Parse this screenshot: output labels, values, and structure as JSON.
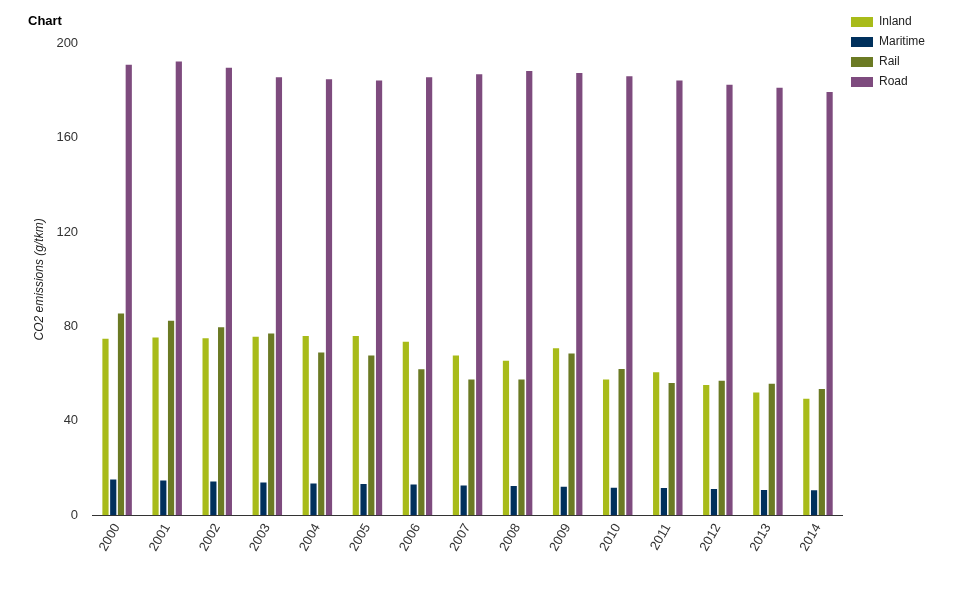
{
  "chart_data": {
    "type": "bar",
    "title": "Chart",
    "y_label": "CO2 emissions (g/tkm)",
    "categories": [
      "2000",
      "2001",
      "2002",
      "2003",
      "2004",
      "2005",
      "2006",
      "2007",
      "2008",
      "2009",
      "2010",
      "2011",
      "2012",
      "2013",
      "2014"
    ],
    "series": [
      {
        "name": "Inland",
        "color": "#a8bb19",
        "values": [
          74.8,
          75.3,
          75.0,
          75.7,
          76.0,
          76.0,
          73.5,
          67.7,
          65.5,
          70.8,
          57.5,
          60.6,
          55.2,
          52.0,
          49.4
        ]
      },
      {
        "name": "Maritime",
        "color": "#00305c",
        "values": [
          15.1,
          14.7,
          14.3,
          13.8,
          13.4,
          13.2,
          13.0,
          12.6,
          12.4,
          12.1,
          11.6,
          11.5,
          11.1,
          10.7,
          10.6
        ]
      },
      {
        "name": "Rail",
        "color": "#6b7a24",
        "values": [
          85.5,
          82.4,
          79.7,
          77.0,
          69.0,
          67.7,
          61.9,
          57.5,
          57.5,
          68.6,
          62.0,
          56.0,
          57.0,
          55.7,
          53.5
        ]
      },
      {
        "name": "Road",
        "color": "#7e4b7e",
        "values": [
          191.0,
          192.4,
          189.8,
          185.7,
          184.9,
          184.4,
          185.7,
          187.0,
          188.4,
          187.5,
          186.2,
          184.4,
          182.6,
          181.3,
          179.5
        ]
      }
    ],
    "ylim": [
      0,
      200
    ],
    "yticks": [
      0,
      40,
      80,
      120,
      160,
      200
    ],
    "grid": false,
    "legend": "top-right"
  }
}
